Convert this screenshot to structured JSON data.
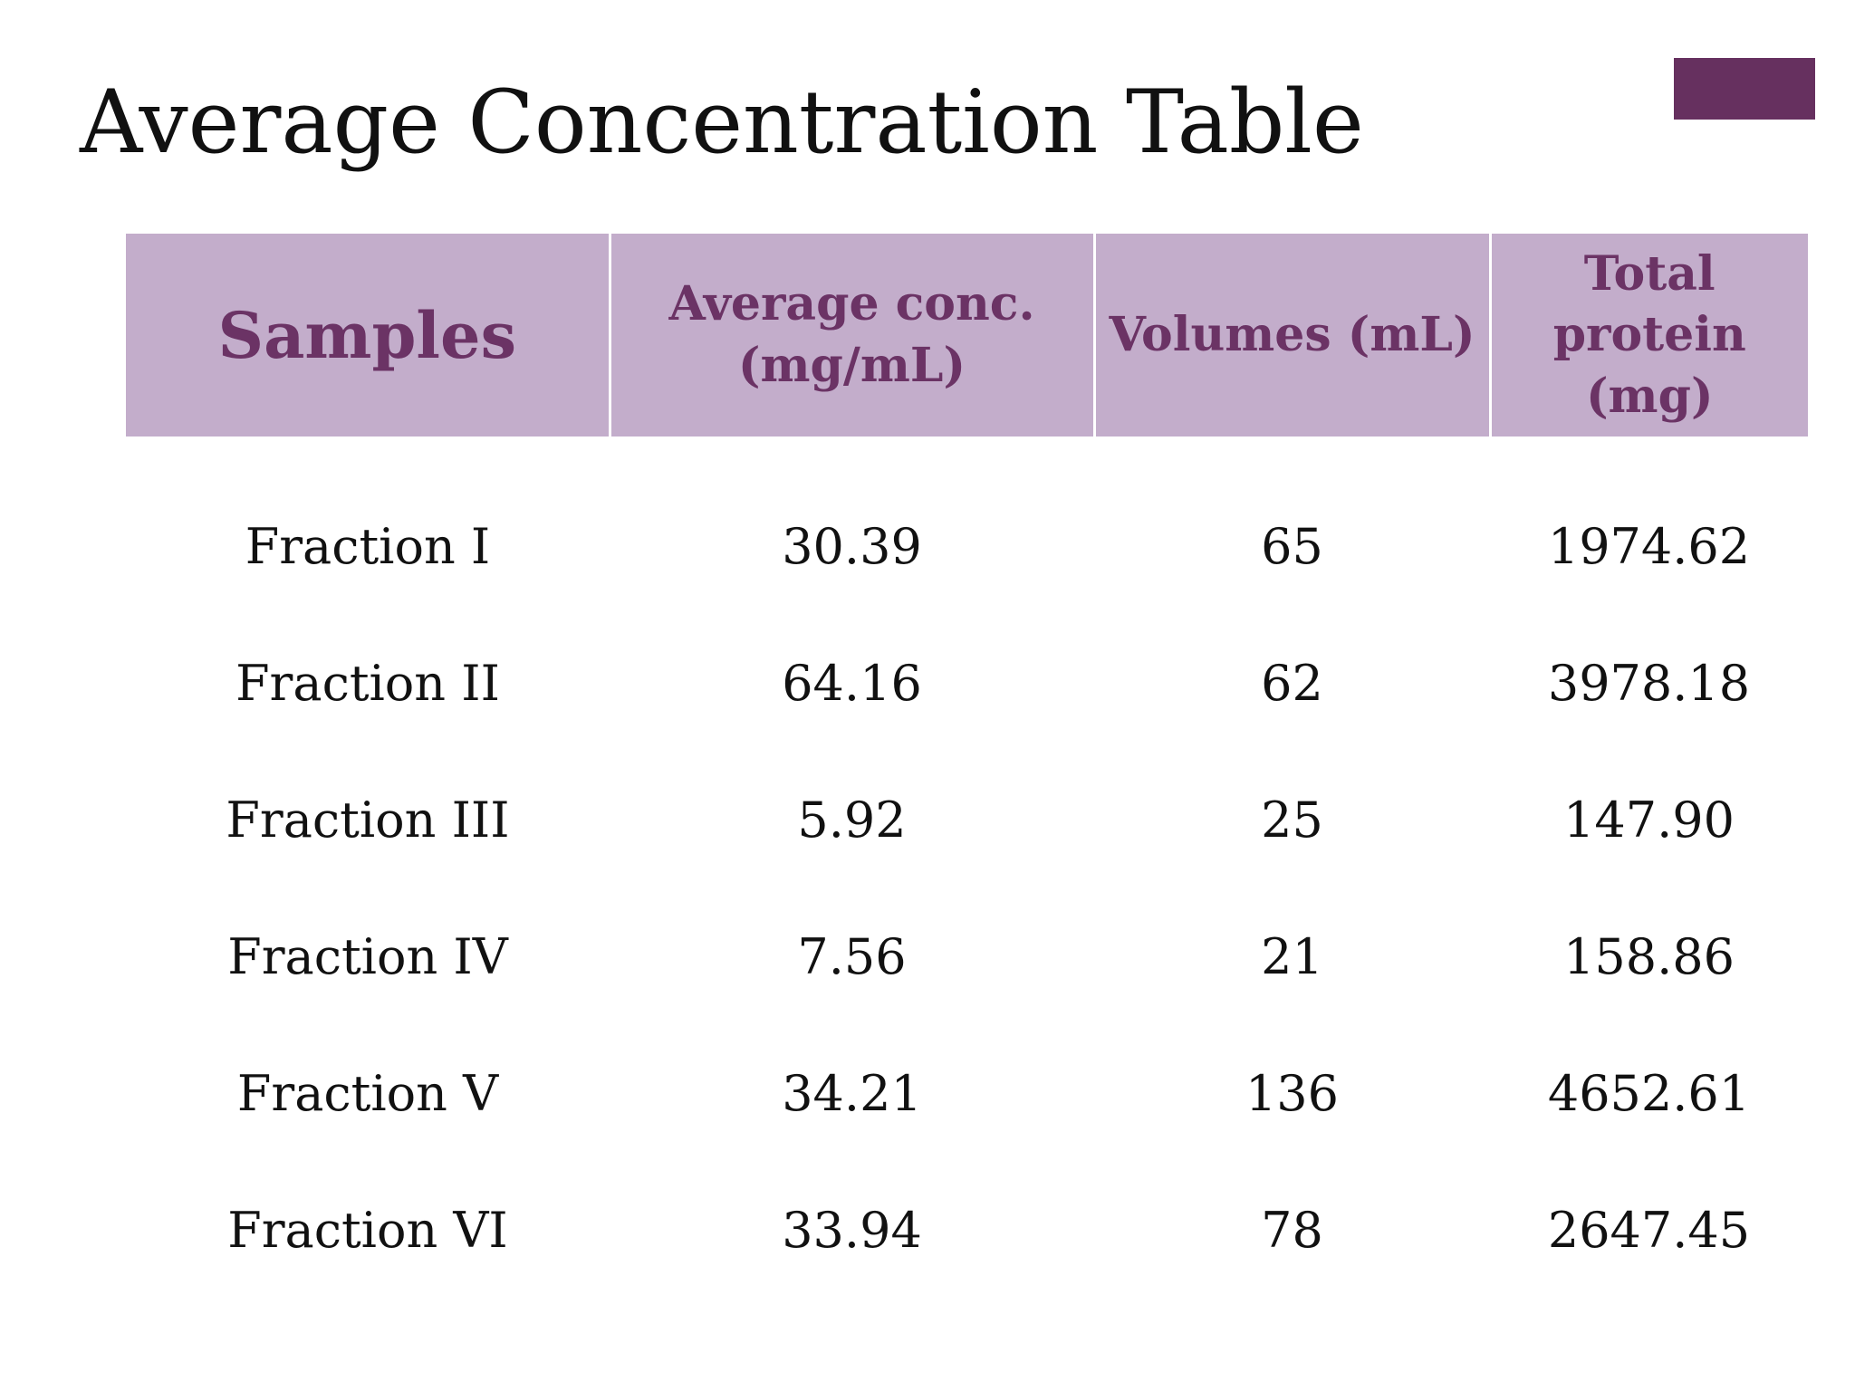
{
  "slide": {
    "title": "Average Concentration Table",
    "accent_color": "#66305f",
    "header_bg": "#c3adcb",
    "header_text_color": "#6b3365"
  },
  "table": {
    "headers": [
      "Samples",
      "Average conc. (mg/mL)",
      "Volumes (mL)",
      "Total protein (mg)"
    ],
    "rows": [
      [
        "Fraction I",
        "30.39",
        "65",
        "1974.62"
      ],
      [
        "Fraction II",
        "64.16",
        "62",
        "3978.18"
      ],
      [
        "Fraction III",
        "5.92",
        "25",
        "147.90"
      ],
      [
        "Fraction IV",
        "7.56",
        "21",
        "158.86"
      ],
      [
        "Fraction V",
        "34.21",
        "136",
        "4652.61"
      ],
      [
        "Fraction VI",
        "33.94",
        "78",
        "2647.45"
      ]
    ]
  }
}
